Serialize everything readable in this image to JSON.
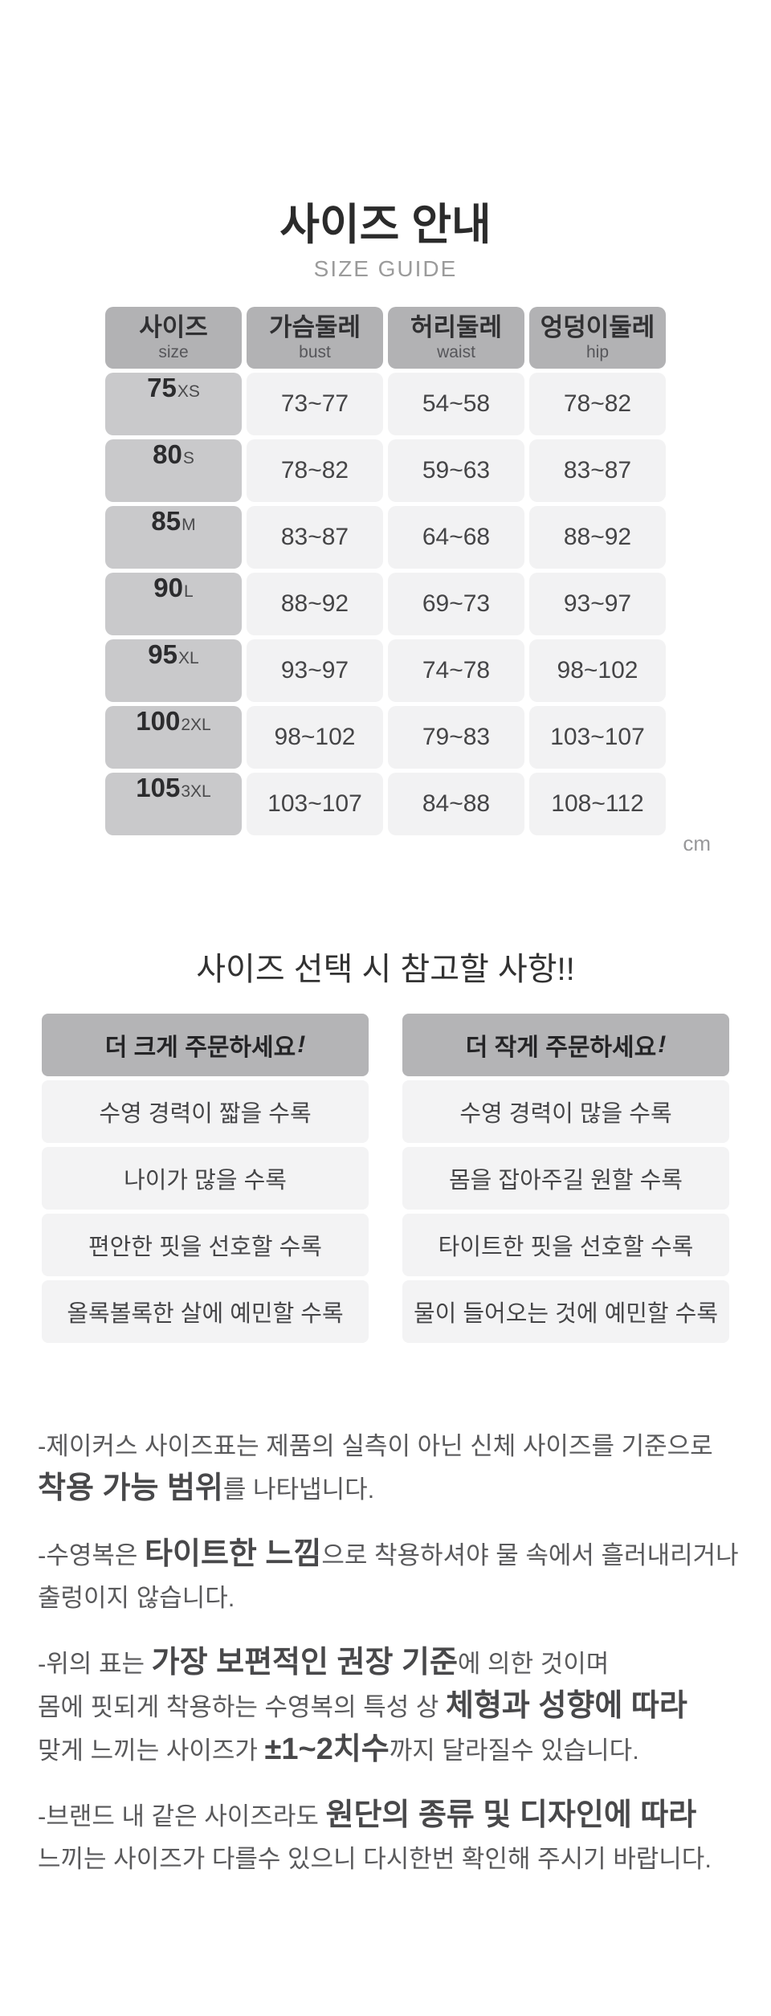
{
  "header": {
    "title": "사이즈 안내",
    "subtitle": "SIZE GUIDE"
  },
  "table": {
    "unit": "cm",
    "columns": [
      {
        "ko": "사이즈",
        "en": "size"
      },
      {
        "ko": "가슴둘레",
        "en": "bust"
      },
      {
        "ko": "허리둘레",
        "en": "waist"
      },
      {
        "ko": "엉덩이둘레",
        "en": "hip"
      }
    ],
    "rows": [
      {
        "size": "75",
        "label": "XS",
        "bust": "73~77",
        "waist": "54~58",
        "hip": "78~82"
      },
      {
        "size": "80",
        "label": "S",
        "bust": "78~82",
        "waist": "59~63",
        "hip": "83~87"
      },
      {
        "size": "85",
        "label": "M",
        "bust": "83~87",
        "waist": "64~68",
        "hip": "88~92"
      },
      {
        "size": "90",
        "label": "L",
        "bust": "88~92",
        "waist": "69~73",
        "hip": "93~97"
      },
      {
        "size": "95",
        "label": "XL",
        "bust": "93~97",
        "waist": "74~78",
        "hip": "98~102"
      },
      {
        "size": "100",
        "label": "2XL",
        "bust": "98~102",
        "waist": "79~83",
        "hip": "103~107"
      },
      {
        "size": "105",
        "label": "3XL",
        "bust": "103~107",
        "waist": "84~88",
        "hip": "108~112"
      }
    ]
  },
  "tips": {
    "heading": "사이즈 선택 시 참고할 사항!!",
    "columns": [
      {
        "name": "order-larger",
        "header": "더 크게 주문하세요",
        "bang": "!",
        "items": [
          "수영 경력이 짧을 수록",
          "나이가 많을 수록",
          "편안한 핏을 선호할 수록",
          "올록볼록한 살에 예민할 수록"
        ]
      },
      {
        "name": "order-smaller",
        "header": "더 작게 주문하세요",
        "bang": "!",
        "items": [
          "수영 경력이 많을 수록",
          "몸을 잡아주길 원할 수록",
          "타이트한 핏을 선호할 수록",
          "물이 들어오는 것에 예민할 수록"
        ]
      }
    ]
  },
  "notes": {
    "paragraphs": [
      {
        "lines": [
          [
            {
              "t": "-제이커스 사이즈표는 제품의 실측이 아닌 신체 사이즈를 기준으로"
            }
          ],
          [
            {
              "t": "착용 가능 범위",
              "em": true
            },
            {
              "t": "를 나타냅니다."
            }
          ]
        ]
      },
      {
        "lines": [
          [
            {
              "t": "-수영복은 "
            },
            {
              "t": "타이트한 느낌",
              "em": true
            },
            {
              "t": "으로 착용하셔야 물 속에서 흘러내리거나"
            }
          ],
          [
            {
              "t": "출렁이지 않습니다."
            }
          ]
        ]
      },
      {
        "lines": [
          [
            {
              "t": "-위의 표는 "
            },
            {
              "t": "가장 보편적인 권장 기준",
              "em": true
            },
            {
              "t": "에 의한 것이며"
            }
          ],
          [
            {
              "t": "몸에 핏되게 착용하는 수영복의 특성 상 "
            },
            {
              "t": "체형과 성향에 따라",
              "em": true
            }
          ],
          [
            {
              "t": "맞게 느끼는 사이즈가 "
            },
            {
              "t": "±1~2치수",
              "em": true
            },
            {
              "t": "까지 달라질수 있습니다."
            }
          ]
        ]
      },
      {
        "lines": [
          [
            {
              "t": "-브랜드 내 같은 사이즈라도 "
            },
            {
              "t": "원단의 종류 및 디자인에 따라",
              "em": true
            }
          ],
          [
            {
              "t": "느끼는 사이즈가 다를수 있으니 다시한번 확인해 주시기 바랍니다."
            }
          ]
        ]
      }
    ]
  },
  "colors": {
    "table_header_bg": "#b2b2b4",
    "size_column_bg": "#c9c9cb",
    "data_cell_bg": "#f2f2f3",
    "tip_header_bg": "#b4b4b6",
    "tip_item_bg": "#f3f3f4",
    "title_text": "#2b2b2b",
    "muted_text": "#9b9b9b",
    "body_text": "#59595b"
  }
}
